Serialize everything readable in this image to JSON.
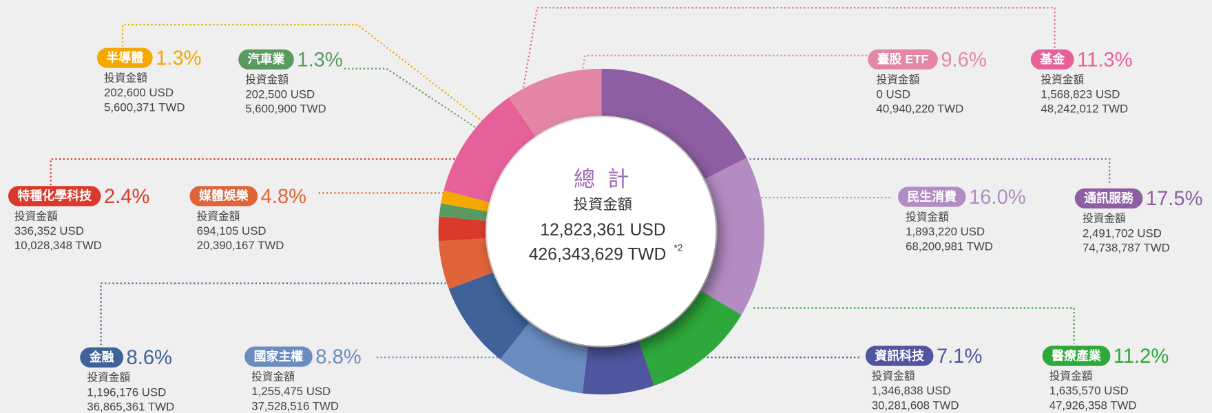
{
  "chart_data": {
    "type": "donut",
    "categories": [
      "通訊服務",
      "民生消費",
      "醫療產業",
      "資訊科技",
      "國家主權",
      "金融",
      "媒體娛樂",
      "特種化學科技",
      "汽車業",
      "半導體",
      "基金",
      "臺股 ETF"
    ],
    "values": [
      17.5,
      16.0,
      11.2,
      7.1,
      8.8,
      8.6,
      4.8,
      2.4,
      1.3,
      1.3,
      11.3,
      9.6
    ],
    "value_labels": [
      "17.5%",
      "16.0%",
      "11.2%",
      "7.1%",
      "8.8%",
      "8.6%",
      "4.8%",
      "2.4%",
      "1.3%",
      "1.3%",
      "11.3%",
      "9.6%"
    ],
    "colors": [
      "#8e5ea2",
      "#b38cc4",
      "#2ea83b",
      "#4f559e",
      "#6b8cc0",
      "#3e6299",
      "#e0643a",
      "#d93a2b",
      "#5a9a5f",
      "#f5a800",
      "#e6619a",
      "#e487a6"
    ],
    "amount_label": "投資金額",
    "usd": [
      "2,491,702 USD",
      "1,893,220 USD",
      "1,635,570 USD",
      "1,346,838 USD",
      "1,255,475 USD",
      "1,196,176 USD",
      "694,105 USD",
      "336,352 USD",
      "202,500 USD",
      "202,600 USD",
      "1,568,823 USD",
      "0 USD"
    ],
    "twd": [
      "74,738,787 TWD",
      "68,200,981 TWD",
      "47,926,358 TWD",
      "30,281,608  TWD",
      "37,528,516  TWD",
      "36,865,361 TWD",
      "20,390,167 TWD",
      "10,028,348 TWD",
      "5,600,900 TWD",
      "5,600,371 TWD",
      "48,242,012 TWD",
      "40,940,220 TWD"
    ],
    "total": {
      "title": "總 計",
      "label": "投資金額",
      "usd": "12,823,361 USD",
      "twd": "426,343,629 TWD",
      "note": "*2"
    }
  }
}
